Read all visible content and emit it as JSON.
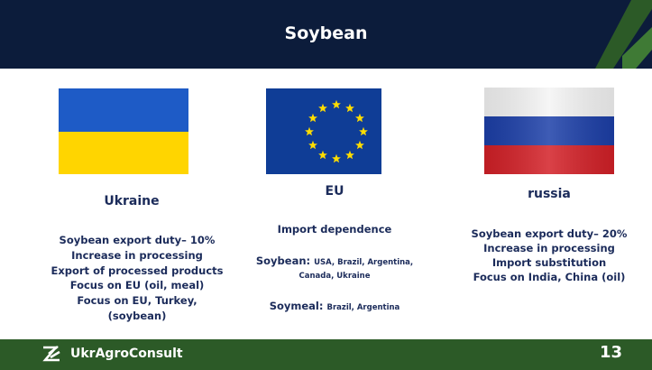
{
  "header": {
    "title": "Soybean"
  },
  "columns": [
    {
      "name": "Ukraine",
      "lines": [
        "Soybean export duty– 10%",
        "Increase in processing",
        "Export of processed products",
        "Focus on EU (oil, meal)",
        "Focus on EU, Turkey,",
        "(soybean)"
      ]
    },
    {
      "name": "EU",
      "heading": "Import dependence",
      "items": [
        {
          "label": "Soybean:",
          "text": "USA, Brazil, Argentina, Canada, Ukraine"
        },
        {
          "label": "Soymeal:",
          "text": "Brazil, Argentina"
        }
      ]
    },
    {
      "name": "russia",
      "lines": [
        "Soybean export duty– 20%",
        "Increase in processing",
        "Import substitution",
        "Focus on India, China (oil)"
      ]
    }
  ],
  "footer": {
    "logo": "UkrAgroConsult",
    "page": "13"
  }
}
